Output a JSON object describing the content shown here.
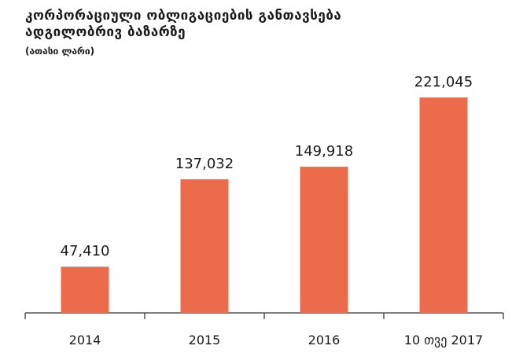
{
  "chart_data": {
    "type": "bar",
    "title_lines": [
      "კორპორაციული ობლიგაციების განთავსება",
      "ადგილობრივ ბაზარზე"
    ],
    "subtitle": "(ათასი ლარი)",
    "categories": [
      "2014",
      "2015",
      "2016",
      "10 თვე 2017"
    ],
    "values": [
      47410,
      137032,
      149918,
      221045
    ],
    "data_labels": [
      "47,410",
      "137,032",
      "149,918",
      "221,045"
    ],
    "ylim": [
      0,
      250000
    ],
    "grid": false,
    "legend": "none"
  },
  "colors": {
    "bar": "#ec6b4a",
    "axis": "#333333"
  }
}
